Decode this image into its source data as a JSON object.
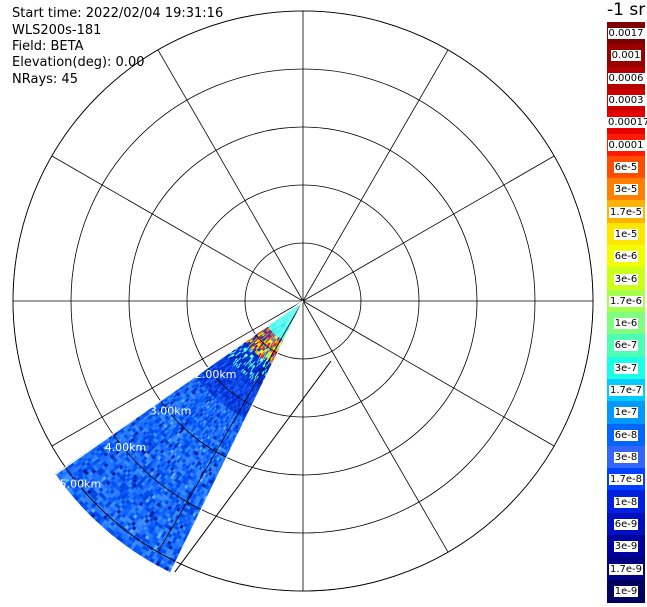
{
  "header": {
    "start_time": "Start time: 2022/02/04 19:31:16",
    "instrument": "WLS200s-181",
    "field": "Field: BETA",
    "elevation": "Elevation(deg): 0.00",
    "nrays": "NRays: 45"
  },
  "colorbar": {
    "unit": "-1 sr",
    "labels": [
      "0.0017",
      "0.001",
      "0.0006",
      "0.0003",
      "0.00017",
      "0.0001",
      "6e-5",
      "3e-5",
      "1.7e-5",
      "1e-5",
      "6e-6",
      "3e-6",
      "1.7e-6",
      "1e-6",
      "6e-7",
      "3e-7",
      "1.7e-7",
      "1e-7",
      "6e-8",
      "3e-8",
      "1.7e-8",
      "1e-8",
      "6e-9",
      "3e-9",
      "1.7e-9",
      "1e-9"
    ],
    "colors": [
      "#7f0000",
      "#990000",
      "#b30000",
      "#cc0000",
      "#e60000",
      "#ff1a00",
      "#ff4d00",
      "#ff8000",
      "#ffb300",
      "#ffe600",
      "#f2ff00",
      "#ccff1a",
      "#a6ff4d",
      "#80ff80",
      "#4dffb3",
      "#1affe6",
      "#00ccff",
      "#0099ff",
      "#0066ff",
      "#3366ff",
      "#0040ff",
      "#0020e0",
      "#0010c0",
      "#0000a0",
      "#000080",
      "#000060"
    ]
  },
  "chart_data": {
    "type": "heatmap",
    "projection": "polar (PPI)",
    "range_rings_km": [
      1,
      2,
      3,
      4,
      5
    ],
    "range_labels": [
      "2.00km",
      "3.00km",
      "4.00km",
      "5.00km"
    ],
    "max_range_km": 5.2,
    "sector_azimuth_deg": [
      206,
      235
    ],
    "radial_spokes_deg": [
      0,
      30,
      60,
      90,
      120,
      150,
      180,
      210,
      240,
      270,
      300,
      330
    ],
    "field": "BETA",
    "color_scale": "log"
  }
}
